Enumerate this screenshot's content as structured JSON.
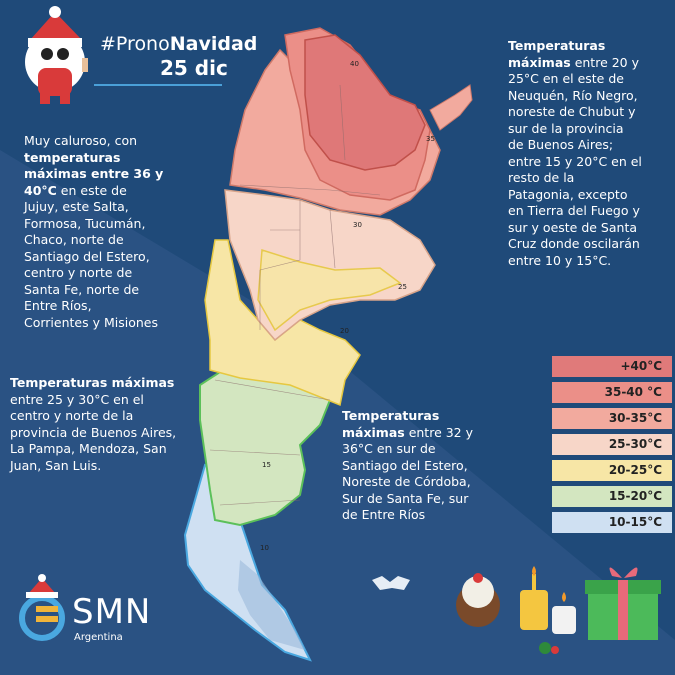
{
  "header": {
    "hashtag_prefix": "#Prono",
    "hashtag_bold": "Navidad",
    "date": "25 dic"
  },
  "regions": {
    "north_hot": {
      "line1": "Muy caluroso, con",
      "bold1": "temperaturas",
      "bold2": "máximas entre 36 y",
      "bold3": "40°C",
      "line2": " en este de",
      "line3": "Jujuy, este Salta,",
      "line4": "Formosa, Tucumán,",
      "line5": "Chaco, norte de",
      "line6": "Santiago del Estero,",
      "line7": "centro y norte de",
      "line8": "Santa Fe, norte de",
      "line9": "Entre Ríos,",
      "line10": "Corrientes y Misiones"
    },
    "center": {
      "bold1": "Temperaturas máximas",
      "line1": "entre 25 y 30°C en el",
      "line2": "centro y norte de la",
      "line3": "provincia de Buenos Aires,",
      "line4": "La Pampa, Mendoza, San",
      "line5": "Juan, San Luis."
    },
    "middle": {
      "bold1": "Temperaturas",
      "bold2": "máximas",
      "line1": " entre 32 y",
      "line2": "36°C en  sur de",
      "line3": "Santiago del Estero,",
      "line4": "Noreste de Córdoba,",
      "line5": "Sur de Santa Fe, sur",
      "line6": "de Entre Ríos"
    },
    "south": {
      "bold1": "Temperaturas",
      "bold2": "máximas",
      "line1": " entre 20 y",
      "line2": "25°C en el este de",
      "line3": "Neuquén, Río Negro,",
      "line4": "noreste de Chubut y",
      "line5": "sur de la provincia",
      "line6": "de Buenos Aires;",
      "line7": "entre 15 y 20°C en el",
      "line8": "resto de la",
      "line9": "Patagonia, excepto",
      "line10": "en Tierra del Fuego y",
      "line11": "sur y oeste de Santa",
      "line12": "Cruz donde oscilarán",
      "line13": "entre 10 y 15°C."
    }
  },
  "legend": [
    {
      "label": "+40°C",
      "color": "#e07a7a"
    },
    {
      "label": "35-40 °C",
      "color": "#eb8f88"
    },
    {
      "label": "30-35°C",
      "color": "#f2aa9e"
    },
    {
      "label": "25-30°C",
      "color": "#f7d6c8"
    },
    {
      "label": "20-25°C",
      "color": "#f7e6a6"
    },
    {
      "label": "15-20°C",
      "color": "#d3e6c0"
    },
    {
      "label": "10-15°C",
      "color": "#cfe0f2"
    }
  ],
  "isotherms": [
    "40",
    "35",
    "30",
    "25",
    "20",
    "15",
    "10"
  ],
  "logo": {
    "name": "SMN",
    "sub": "Argentina"
  }
}
